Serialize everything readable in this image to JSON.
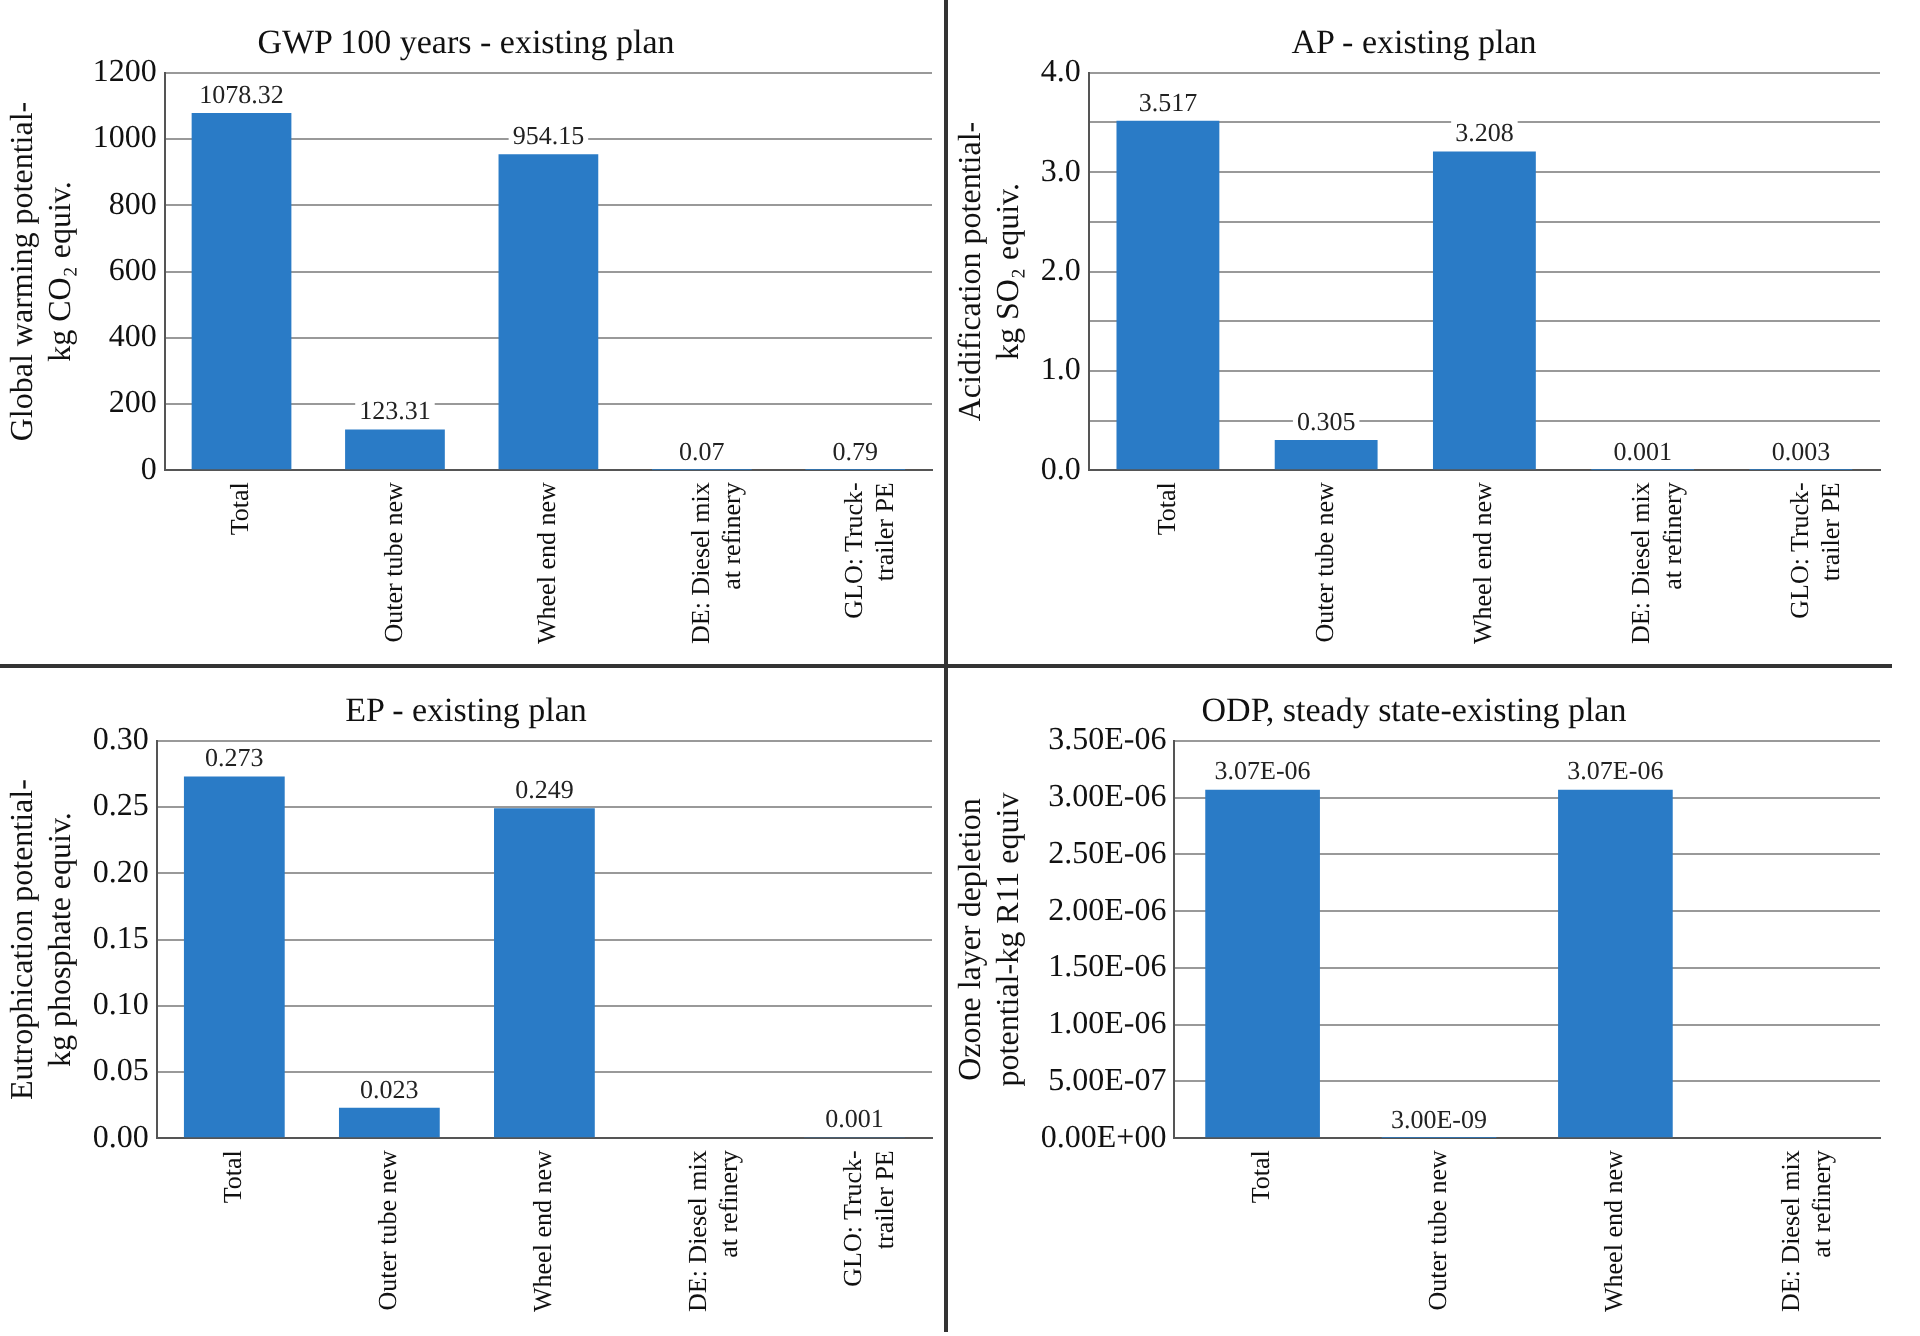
{
  "chart_data": [
    {
      "type": "bar",
      "title": "GWP 100 years - existing plan",
      "ylabel": "Global warming potential-\nkg CO₂ equiv.",
      "categories": [
        "Total",
        "Outer tube new",
        "Wheel end new",
        "DE: Diesel mix\nat refinery",
        "GLO: Truck-\ntrailer PE"
      ],
      "values": [
        1078.32,
        123.31,
        954.15,
        0.07,
        0.79
      ],
      "color": "#2a7bc6",
      "value_labels": [
        "1078.32",
        "123.31",
        "954.15",
        "0.07",
        "0.79"
      ],
      "ylim": [
        0,
        1200
      ],
      "yticks": [
        0,
        200,
        400,
        600,
        800,
        1000,
        1200
      ],
      "grid": "y"
    },
    {
      "type": "bar",
      "title": "AP - existing plan",
      "ylabel": "Acidification potential-\nkg SO₂ equiv.",
      "categories": [
        "Total",
        "Outer tube new",
        "Wheel end new",
        "DE: Diesel mix\nat refinery",
        "GLO: Truck-\ntrailer PE"
      ],
      "values": [
        3.517,
        0.305,
        3.208,
        0.001,
        0.003
      ],
      "color": "#2a7bc6",
      "value_labels": [
        "3.517",
        "0.305",
        "3.208",
        "0.001",
        "0.003"
      ],
      "ylim": [
        0,
        4
      ],
      "yticks": [
        {
          "value": 0,
          "label": "0.0"
        },
        {
          "value": 0.5,
          "label": null
        },
        {
          "value": 1,
          "label": "1.0"
        },
        {
          "value": 1.5,
          "label": null
        },
        {
          "value": 2,
          "label": "2.0"
        },
        {
          "value": 2.5,
          "label": null
        },
        {
          "value": 3,
          "label": "3.0"
        },
        {
          "value": 3.5,
          "label": null
        },
        {
          "value": 4,
          "label": "4.0"
        }
      ],
      "grid": "y"
    },
    {
      "type": "bar",
      "title": "EP - existing plan",
      "ylabel": "Eutrophication potential-\nkg phosphate equiv.",
      "categories": [
        "Total",
        "Outer tube new",
        "Wheel end new",
        "DE: Diesel mix\nat refinery",
        "GLO: Truck-\ntrailer PE"
      ],
      "values": [
        0.273,
        0.023,
        0.249,
        null,
        0.001
      ],
      "color": "#2a7bc6",
      "value_labels": [
        "0.273",
        "0.023",
        "0.249",
        null,
        "0.001"
      ],
      "ylim": [
        0,
        0.3
      ],
      "yticks": [
        {
          "value": 0,
          "label": "0.00"
        },
        {
          "value": 0.05,
          "label": "0.05"
        },
        {
          "value": 0.1,
          "label": "0.10"
        },
        {
          "value": 0.15,
          "label": "0.15"
        },
        {
          "value": 0.2,
          "label": "0.20"
        },
        {
          "value": 0.25,
          "label": "0.25"
        },
        {
          "value": 0.3,
          "label": "0.30"
        }
      ],
      "grid": "y"
    },
    {
      "type": "bar",
      "title": "ODP, steady state-existing plan",
      "ylabel": "Ozone layer depletion\npotential-kg R11 equiv",
      "categories": [
        "Total",
        "Outer tube new",
        "Wheel end new",
        "DE: Diesel mix\nat refinery"
      ],
      "values": [
        3.07e-06,
        3e-09,
        3.07e-06,
        null
      ],
      "color": "#2a7bc6",
      "value_labels": [
        "3.07E-06",
        "3.00E-09",
        "3.07E-06",
        null
      ],
      "ylim": [
        0,
        3.5e-06
      ],
      "yticks": [
        {
          "value": 0,
          "label": "0.00E+00"
        },
        {
          "value": 5e-07,
          "label": "5.00E-07"
        },
        {
          "value": 1e-06,
          "label": "1.00E-06"
        },
        {
          "value": 1.5e-06,
          "label": "1.50E-06"
        },
        {
          "value": 2e-06,
          "label": "2.00E-06"
        },
        {
          "value": 2.5e-06,
          "label": "2.50E-06"
        },
        {
          "value": 3e-06,
          "label": "3.00E-06"
        },
        {
          "value": 3.5e-06,
          "label": "3.50E-06"
        }
      ],
      "grid": "y"
    }
  ]
}
